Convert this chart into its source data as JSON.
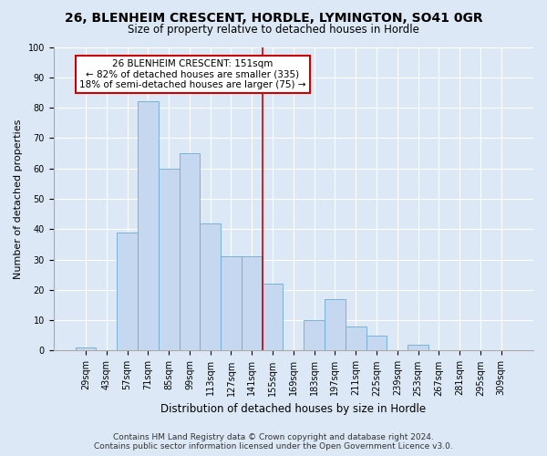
{
  "title": "26, BLENHEIM CRESCENT, HORDLE, LYMINGTON, SO41 0GR",
  "subtitle": "Size of property relative to detached houses in Hordle",
  "xlabel": "Distribution of detached houses by size in Hordle",
  "ylabel": "Number of detached properties",
  "bar_labels": [
    "29sqm",
    "43sqm",
    "57sqm",
    "71sqm",
    "85sqm",
    "99sqm",
    "113sqm",
    "127sqm",
    "141sqm",
    "155sqm",
    "169sqm",
    "183sqm",
    "197sqm",
    "211sqm",
    "225sqm",
    "239sqm",
    "253sqm",
    "267sqm",
    "281sqm",
    "295sqm",
    "309sqm"
  ],
  "bar_values": [
    1,
    0,
    39,
    82,
    60,
    65,
    42,
    31,
    31,
    22,
    0,
    10,
    17,
    8,
    5,
    0,
    2,
    0,
    0,
    0,
    0
  ],
  "bar_color": "#c5d8ef",
  "bar_edge_color": "#6baad4",
  "vline_x": 8.5,
  "vline_color": "#cc0000",
  "ylim": [
    0,
    100
  ],
  "annotation_line1": "26 BLENHEIM CRESCENT: 151sqm",
  "annotation_line2": "← 82% of detached houses are smaller (335)",
  "annotation_line3": "18% of semi-detached houses are larger (75) →",
  "annotation_box_color": "#ffffff",
  "annotation_box_edge_color": "#cc0000",
  "footer_line1": "Contains HM Land Registry data © Crown copyright and database right 2024.",
  "footer_line2": "Contains public sector information licensed under the Open Government Licence v3.0.",
  "fig_background_color": "#dce8f5",
  "plot_background_color": "#dce8f5",
  "title_fontsize": 10,
  "subtitle_fontsize": 8.5,
  "xlabel_fontsize": 8.5,
  "ylabel_fontsize": 8,
  "tick_label_fontsize": 7,
  "annotation_fontsize": 7.5,
  "footer_fontsize": 6.5,
  "yticks": [
    0,
    10,
    20,
    30,
    40,
    50,
    60,
    70,
    80,
    90,
    100
  ]
}
